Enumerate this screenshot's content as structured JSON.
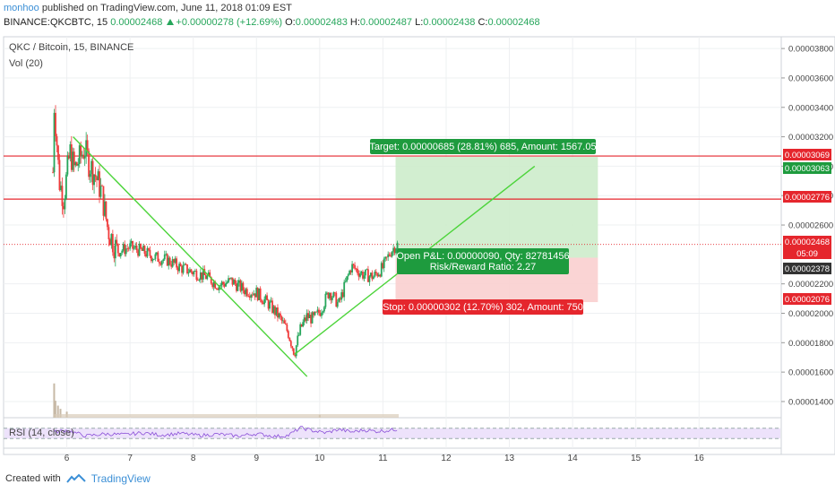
{
  "header": {
    "user": "monhoo",
    "published_text": "published on TradingView.com, June 11, 2018 01:09 EST",
    "symbol": "BINANCE:QKCBTC, 15",
    "last": "0.00002468",
    "change": "+0.00000278 (+12.69%)",
    "o_label": "O:",
    "o_value": "0.00002483",
    "h_label": "H:",
    "h_value": "0.00002487",
    "l_label": "L:",
    "l_value": "0.00002438",
    "c_label": "C:",
    "c_value": "0.00002468"
  },
  "legend": {
    "symbol_title": "QKC / Bitcoin, 15, BINANCE",
    "vol_label": "Vol (20)",
    "rsi_label": "RSI (14, close)"
  },
  "positions": {
    "target_label": "Target: 0.00000685 (28.81%) 685, Amount: 1567.05",
    "pnl_line1": "Open P&L: 0.00000090, Qty: 82781456",
    "pnl_line2": "Risk/Reward Ratio: 2.27",
    "stop_label": "Stop: 0.00000302 (12.70%) 302, Amount: 750"
  },
  "price_tags": {
    "t3069": "0.00003069",
    "t3063": "0.00003063",
    "t2776": "0.00002776",
    "t2468": "0.00002468",
    "timer": "05:09",
    "t2378": "0.00002378",
    "t2076": "0.00002076"
  },
  "footer": {
    "created_with": "Created with",
    "brand": "TradingView"
  },
  "colors": {
    "up": "#26a65b",
    "down": "#ef3b3b",
    "line": "#4cd43a",
    "target_fill": "#cdeccb",
    "stop_fill": "#f9cfcf",
    "rsi_band": "#ede2fb",
    "rsi_line": "#8a4fd8"
  },
  "chart_data": {
    "type": "candlestick",
    "title": "QKC / Bitcoin, 15, BINANCE",
    "x_tick_labels": [
      "6",
      "7",
      "8",
      "9",
      "10",
      "11",
      "12",
      "13",
      "14",
      "15",
      "16"
    ],
    "y_tick_labels": [
      "0.00001400",
      "0.00001600",
      "0.00001800",
      "0.00002000",
      "0.00002200",
      "0.00002600",
      "0.00002800",
      "0.00003000",
      "0.00003200",
      "0.00003400",
      "0.00003600",
      "0.00003800"
    ],
    "ylim": [
      1.29e-05,
      3.88e-05
    ],
    "xlim": [
      5.0,
      17.3
    ],
    "price_path": {
      "x": [
        5.78,
        5.8,
        5.84,
        5.88,
        5.95,
        6.05,
        6.12,
        6.2,
        6.28,
        6.35,
        6.45,
        6.55,
        6.65,
        6.8,
        7.0,
        7.2,
        7.4,
        7.6,
        7.8,
        8.0,
        8.2,
        8.4,
        8.6,
        8.8,
        9.0,
        9.2,
        9.35,
        9.5,
        9.6,
        9.7,
        9.8,
        9.9,
        10.0,
        10.15,
        10.3,
        10.5,
        10.7,
        10.85,
        11.0,
        11.12,
        11.2,
        11.25
      ],
      "y": [
        2.96e-05,
        3.42e-05,
        3.18e-05,
        2.9e-05,
        2.78e-05,
        3.1e-05,
        2.98e-05,
        3.05e-05,
        3.12e-05,
        3.02e-05,
        2.94e-05,
        2.82e-05,
        2.57e-05,
        2.42e-05,
        2.45e-05,
        2.42e-05,
        2.38e-05,
        2.36e-05,
        2.31e-05,
        2.28e-05,
        2.25e-05,
        2.19e-05,
        2.22e-05,
        2.16e-05,
        2.14e-05,
        2.06e-05,
        1.98e-05,
        1.87e-05,
        1.73e-05,
        1.9e-05,
        1.98e-05,
        1.96e-05,
        2.01e-05,
        2.15e-05,
        2.06e-05,
        2.32e-05,
        2.26e-05,
        2.25e-05,
        2.31e-05,
        2.42e-05,
        2.46e-05,
        2.47e-05
      ]
    },
    "horizontal_lines": [
      3.069e-05,
      2.776e-05
    ],
    "last_price": 2.468e-05,
    "trendlines": [
      {
        "x1": 6.1,
        "y1": 3.2e-05,
        "x2": 9.8,
        "y2": 1.57e-05
      },
      {
        "x1": 9.6,
        "y1": 1.72e-05,
        "x2": 13.4,
        "y2": 3e-05
      }
    ],
    "long_position": {
      "x_start": 11.2,
      "x_end": 14.4,
      "entry": 2.378e-05,
      "target": 3.063e-05,
      "stop": 2.076e-05
    },
    "volume_spikes": [
      {
        "x": 5.8,
        "v": 0.85
      },
      {
        "x": 5.82,
        "v": 0.42
      },
      {
        "x": 5.86,
        "v": 0.3
      },
      {
        "x": 5.9,
        "v": 0.22
      },
      {
        "x": 6.0,
        "v": 0.15
      },
      {
        "x": 10.0,
        "v": 0.07
      }
    ],
    "rsi": {
      "upper": 70,
      "lower": 30,
      "x": [
        5.8,
        6.0,
        6.3,
        6.6,
        6.9,
        7.2,
        7.5,
        7.8,
        8.1,
        8.4,
        8.7,
        9.0,
        9.3,
        9.5,
        9.7,
        9.9,
        10.1,
        10.3,
        10.5,
        10.7,
        10.9,
        11.1,
        11.25
      ],
      "values": [
        55,
        62,
        40,
        48,
        45,
        52,
        44,
        50,
        42,
        47,
        40,
        49,
        38,
        42,
        72,
        60,
        52,
        66,
        55,
        63,
        58,
        62,
        66
      ]
    }
  }
}
